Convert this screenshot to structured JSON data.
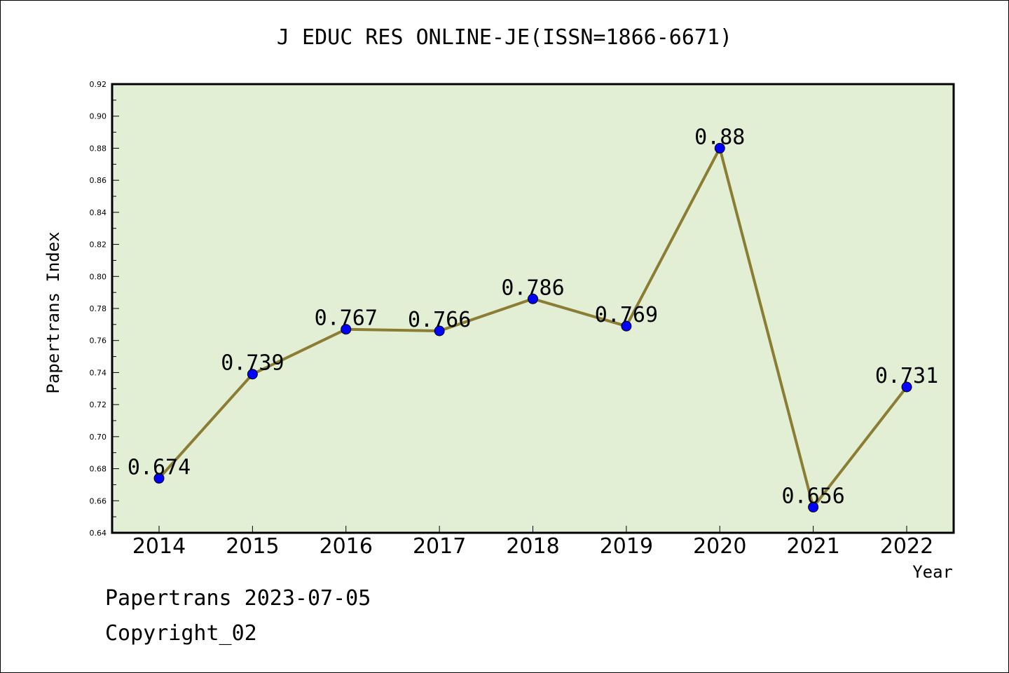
{
  "footer": {
    "line1": "Papertrans 2023-07-05",
    "line2": "Copyright_02"
  },
  "colors": {
    "plot_background": "#e2efd4",
    "line": "#8b7d33",
    "marker": "#0000ff"
  },
  "chart_data": {
    "type": "line",
    "title": "J EDUC RES ONLINE-JE(ISSN=1866-6671)",
    "xlabel": "Year",
    "ylabel": "Papertrans Index",
    "categories": [
      "2014",
      "2015",
      "2016",
      "2017",
      "2018",
      "2019",
      "2020",
      "2021",
      "2022"
    ],
    "series": [
      {
        "values": [
          0.674,
          0.739,
          0.767,
          0.766,
          0.786,
          0.769,
          0.88,
          0.656,
          0.731
        ]
      }
    ],
    "data_labels": [
      "0.674",
      "0.739",
      "0.767",
      "0.766",
      "0.786",
      "0.769",
      "0.88",
      "0.656",
      "0.731"
    ],
    "ylim": [
      0.64,
      0.92
    ],
    "yticks": [
      "0.64",
      "0.66",
      "0.68",
      "0.70",
      "0.72",
      "0.74",
      "0.76",
      "0.78",
      "0.80",
      "0.82",
      "0.84",
      "0.86",
      "0.88",
      "0.90",
      "0.92"
    ],
    "grid": false,
    "legend": "none"
  }
}
